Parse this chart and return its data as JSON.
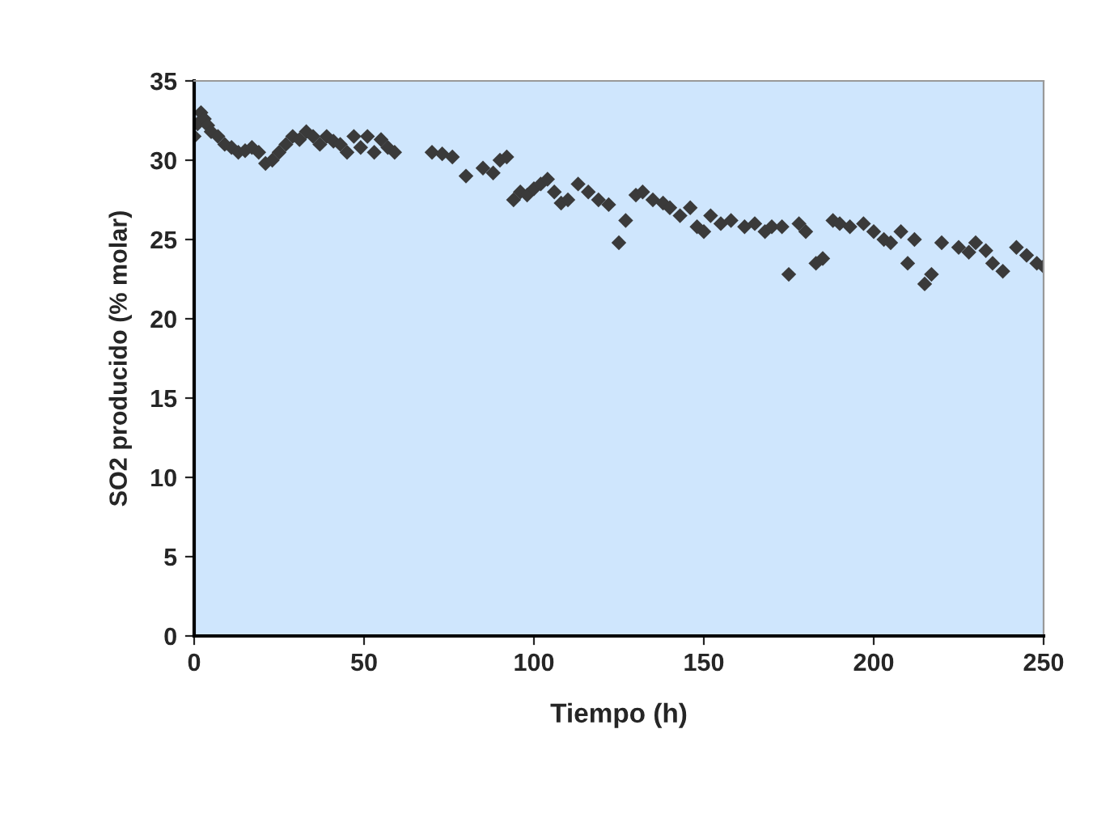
{
  "chart_data": {
    "type": "scatter",
    "xlabel": "Tiempo (h)",
    "ylabel": "SO2 producido (% molar)",
    "xlim": [
      0,
      250
    ],
    "xticks": [
      0,
      50,
      100,
      150,
      200,
      250
    ],
    "ylim": [
      0,
      35
    ],
    "yticks": [
      0,
      5,
      10,
      15,
      20,
      25,
      30,
      35
    ],
    "grid": false,
    "marker": "diamond",
    "series": [
      {
        "color": "#3a3a3a",
        "x": [
          0,
          1,
          2,
          3,
          4,
          5,
          7,
          9,
          11,
          13,
          15,
          17,
          19,
          21,
          23,
          25,
          27,
          29,
          31,
          33,
          35,
          37,
          39,
          41,
          43,
          45,
          47,
          49,
          51,
          53,
          55,
          57,
          59,
          70,
          73,
          76,
          80,
          85,
          88,
          90,
          92,
          94,
          96,
          98,
          100,
          102,
          104,
          106,
          108,
          110,
          113,
          116,
          119,
          122,
          125,
          127,
          130,
          132,
          135,
          138,
          140,
          143,
          146,
          148,
          150,
          152,
          155,
          158,
          162,
          165,
          168,
          170,
          173,
          175,
          178,
          180,
          183,
          185,
          188,
          190,
          193,
          197,
          200,
          203,
          205,
          208,
          210,
          212,
          215,
          217,
          220,
          225,
          228,
          230,
          233,
          235,
          238,
          242,
          245,
          248,
          250
        ],
        "values": [
          31.5,
          32.3,
          33,
          32.6,
          32.2,
          31.8,
          31.5,
          31,
          30.8,
          30.5,
          30.6,
          30.8,
          30.5,
          29.8,
          30,
          30.5,
          31,
          31.5,
          31.3,
          31.8,
          31.5,
          31,
          31.5,
          31.2,
          31,
          30.5,
          31.5,
          30.8,
          31.5,
          30.5,
          31.3,
          30.8,
          30.5,
          30.5,
          30.4,
          30.2,
          29,
          29.5,
          29.2,
          30,
          30.2,
          27.5,
          28,
          27.8,
          28.2,
          28.5,
          28.8,
          28,
          27.3,
          27.5,
          28.5,
          28,
          27.5,
          27.2,
          24.8,
          26.2,
          27.8,
          28,
          27.5,
          27.3,
          27,
          26.5,
          27,
          25.8,
          25.5,
          26.5,
          26,
          26.2,
          25.8,
          26,
          25.5,
          25.8,
          25.8,
          22.8,
          26,
          25.5,
          23.5,
          23.8,
          26.2,
          26,
          25.8,
          26,
          25.5,
          25,
          24.8,
          25.5,
          23.5,
          25,
          22.2,
          22.8,
          24.8,
          24.5,
          24.2,
          24.8,
          24.3,
          23.5,
          23,
          24.5,
          24,
          23.5,
          23.3
        ]
      }
    ]
  }
}
